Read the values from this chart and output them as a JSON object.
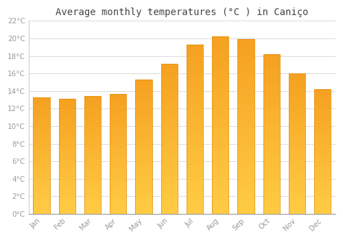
{
  "months": [
    "Jan",
    "Feb",
    "Mar",
    "Apr",
    "May",
    "Jun",
    "Jul",
    "Aug",
    "Sep",
    "Oct",
    "Nov",
    "Dec"
  ],
  "values": [
    13.3,
    13.1,
    13.4,
    13.7,
    15.3,
    17.1,
    19.3,
    20.2,
    19.9,
    18.2,
    16.0,
    14.2
  ],
  "bar_color_top": "#F5A020",
  "bar_color_bottom": "#FFCC44",
  "bar_edge_color": "#E89010",
  "title": "Average monthly temperatures (°C ) in Caniço",
  "ylim": [
    0,
    22
  ],
  "yticks": [
    0,
    2,
    4,
    6,
    8,
    10,
    12,
    14,
    16,
    18,
    20,
    22
  ],
  "ytick_labels": [
    "0°C",
    "2°C",
    "4°C",
    "6°C",
    "8°C",
    "10°C",
    "12°C",
    "14°C",
    "16°C",
    "18°C",
    "20°C",
    "22°C"
  ],
  "background_color": "#ffffff",
  "grid_color": "#dddddd",
  "tick_label_color": "#999999",
  "title_color": "#444444",
  "title_fontsize": 10,
  "bar_width": 0.65
}
